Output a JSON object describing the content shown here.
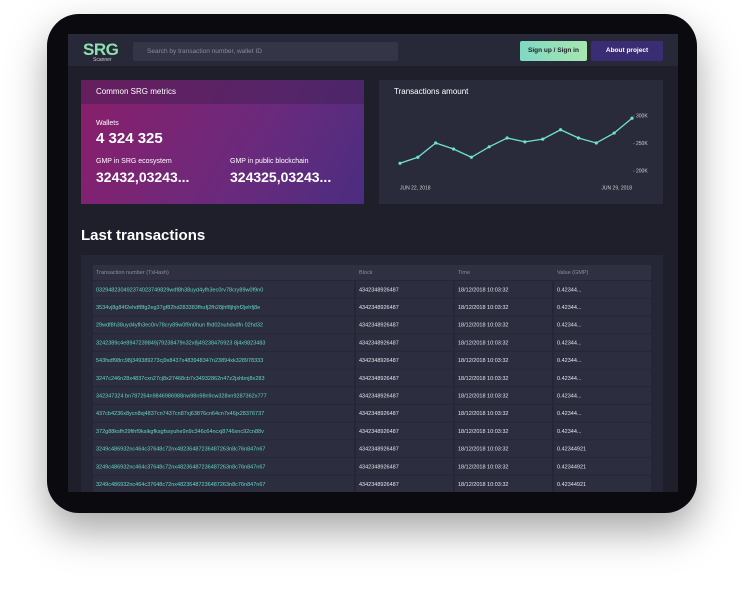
{
  "header": {
    "logo": "SRG",
    "logo_sub": "Scanner",
    "search_placeholder": "Search by transaction number, wallet ID",
    "signin": "Sign up / Sign in",
    "about": "About project"
  },
  "metrics": {
    "title": "Common SRG metrics",
    "wallets_label": "Wallets",
    "wallets": "4 324 325",
    "ecosystem_label": "GMP in SRG ecosystem",
    "ecosystem": "32432,03243...",
    "public_label": "GMP in public blockchain",
    "public": "324325,03243..."
  },
  "chart_data": {
    "type": "line",
    "title": "Transactions amount",
    "categories": [
      "JUN 22, 2018",
      null,
      null,
      null,
      null,
      null,
      null,
      null,
      null,
      null,
      null,
      null,
      null,
      "JUN 29, 2018"
    ],
    "values": [
      214000,
      225000,
      251000,
      240000,
      225000,
      244000,
      260000,
      253000,
      258000,
      275000,
      260000,
      251000,
      269000,
      296000
    ],
    "color": "#6fe0d2",
    "ylim": [
      200000,
      300000
    ],
    "yticks": [
      {
        "value": 200000,
        "label": "200K"
      },
      {
        "value": 250000,
        "label": "250K"
      },
      {
        "value": 300000,
        "label": "300K"
      }
    ]
  },
  "transactions": {
    "title": "Last transactions",
    "table": {
      "columns": [
        "Transaction number (TxHash)",
        "Block",
        "Time",
        "Value (GMP)"
      ],
      "rows": [
        [
          "032948230492374023749829wdf8h38uyd4yfh3ec0rv78cry89w0f9n0",
          "4342348926487",
          "18/12/2018  10:03:32",
          "0.42344..."
        ],
        [
          "3534vj8g84f2ehdf8fg2eg37gf82hd283383fhufj2fh28jhf8jhjhf2jehfj8e",
          "4342348926487",
          "18/12/2018  10:03:32",
          "0.42344..."
        ],
        [
          "29wdf8h38uyd4yfh3ec0rv78cry89w0f9n0hun fhd02nuhdvdfn 02hd32",
          "4342348926487",
          "18/12/2018  10:03:32",
          "0.42344..."
        ],
        [
          "3242389c4e8947239849j79238479n32x8j49238476923 8j4x9823483",
          "4342348926487",
          "18/12/2018  10:03:32",
          "0.42344..."
        ],
        [
          "543fsdf98rc98j349389273cj9x8437x483948347n23894xk328978333",
          "4342348926487",
          "18/12/2018  10:03:32",
          "0.42344..."
        ],
        [
          "3247c246n28x4837cxn27cj8x27468cb7x34932862n47z2jshbnj8x283",
          "4342348926487",
          "18/12/2018  10:03:32",
          "0.42344..."
        ],
        [
          "342347324 bn787264n9846986988nw98n98n9cw328xn9287362x777",
          "4342348926487",
          "18/12/2018  10:03:32",
          "0.42344..."
        ],
        [
          "437cb4236x8ycn8xj4837cn7437cn87xj63876cn64cn7x46jx28376737",
          "4342348926487",
          "18/12/2018  10:03:32",
          "0.42344..."
        ],
        [
          "372g88ksfh29fihf9ksikgfksgfssyuhe9n9c346c64ncxj8746xnc92cn88v",
          "4342348926487",
          "18/12/2018  10:03:32",
          "0.42344..."
        ],
        [
          "3249c486932nc464c37648c72nx48236487236487263n8c76n847n67",
          "4342348926487",
          "18/12/2018  10:03:32",
          "0.42344921"
        ],
        [
          "3249c486932nc464c37648c72nx48236487236487263n8c76n847n67",
          "4342348926487",
          "18/12/2018  10:03:32",
          "0.42344921"
        ],
        [
          "3249c486932nc464c37648c72nx48236487236487263n8c76n847n67",
          "4342348926487",
          "18/12/2018  10:03:32",
          "0.42344921"
        ],
        [
          "3249c486932nc464c37648c72nx48236487236487263n8c76n847n67",
          "4342348926487",
          "18/12/2018  10:03:32",
          "0.42344921"
        ]
      ]
    }
  }
}
